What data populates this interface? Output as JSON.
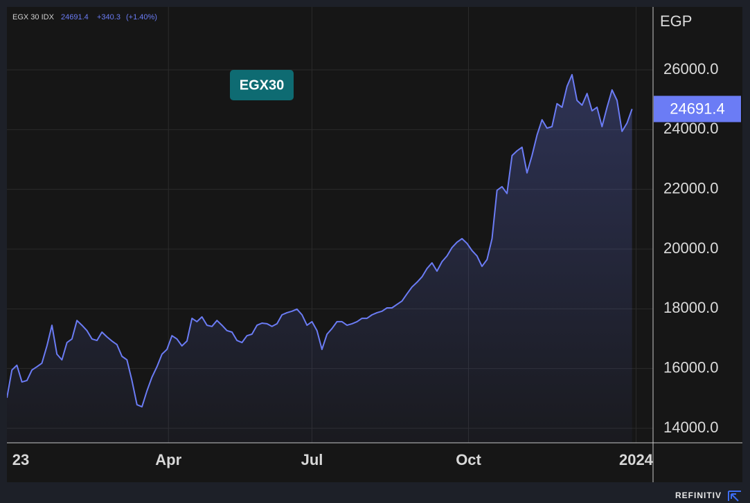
{
  "chart_data": {
    "type": "area",
    "header": {
      "name": "EGX 30 IDX",
      "change": {
        "value": 340.3,
        "label": "+340.3"
      },
      "change_pct": {
        "value": 1.4,
        "label": "(+1.40%)"
      }
    },
    "y_label": "EGP",
    "brand": "REFINITIV",
    "series": [
      {
        "name": "EGX30",
        "color": "#6b7cf5",
        "legend_color": "#0e6b72",
        "values": [
          15020,
          15950,
          16110,
          15550,
          15600,
          15950,
          16060,
          16180,
          16760,
          17450,
          16480,
          16290,
          16870,
          16990,
          17610,
          17450,
          17270,
          16990,
          16940,
          17220,
          17060,
          16920,
          16800,
          16410,
          16290,
          15600,
          14790,
          14720,
          15250,
          15710,
          16060,
          16480,
          16640,
          17100,
          16990,
          16760,
          16920,
          17680,
          17570,
          17730,
          17450,
          17410,
          17610,
          17450,
          17270,
          17220,
          16940,
          16870,
          17100,
          17150,
          17450,
          17520,
          17500,
          17410,
          17500,
          17800,
          17870,
          17920,
          17990,
          17800,
          17450,
          17570,
          17270,
          16640,
          17150,
          17340,
          17570,
          17570,
          17450,
          17500,
          17570,
          17680,
          17680,
          17800,
          17870,
          17920,
          18030,
          18030,
          18150,
          18260,
          18500,
          18730,
          18890,
          19070,
          19350,
          19540,
          19260,
          19580,
          19770,
          20050,
          20230,
          20350,
          20190,
          19950,
          19770,
          19420,
          19650,
          20350,
          21970,
          22090,
          21860,
          23130,
          23290,
          23410,
          22550,
          23130,
          23820,
          24330,
          24050,
          24100,
          24870,
          24750,
          25450,
          25840,
          24980,
          24820,
          25210,
          24630,
          24750,
          24100,
          24750,
          25330,
          24980,
          23940,
          24220,
          24691.4
        ]
      }
    ],
    "xlim": [
      0,
      129.2
    ],
    "xticks": [
      {
        "value": 0,
        "label": "23"
      },
      {
        "value": 32.3,
        "label": "Apr"
      },
      {
        "value": 61,
        "label": "Jul"
      },
      {
        "value": 92.3,
        "label": "Oct"
      },
      {
        "value": 125.8,
        "label": "2024"
      }
    ],
    "ylim": [
      13513,
      28109
    ],
    "yticks": [
      {
        "value": 14000,
        "label": "14000.0"
      },
      {
        "value": 16000,
        "label": "16000.0"
      },
      {
        "value": 18000,
        "label": "18000.0"
      },
      {
        "value": 20000,
        "label": "20000.0"
      },
      {
        "value": 22000,
        "label": "22000.0"
      },
      {
        "value": 24000,
        "label": "24000.0"
      },
      {
        "value": 26000,
        "label": "26000.0"
      }
    ],
    "grid": true
  }
}
